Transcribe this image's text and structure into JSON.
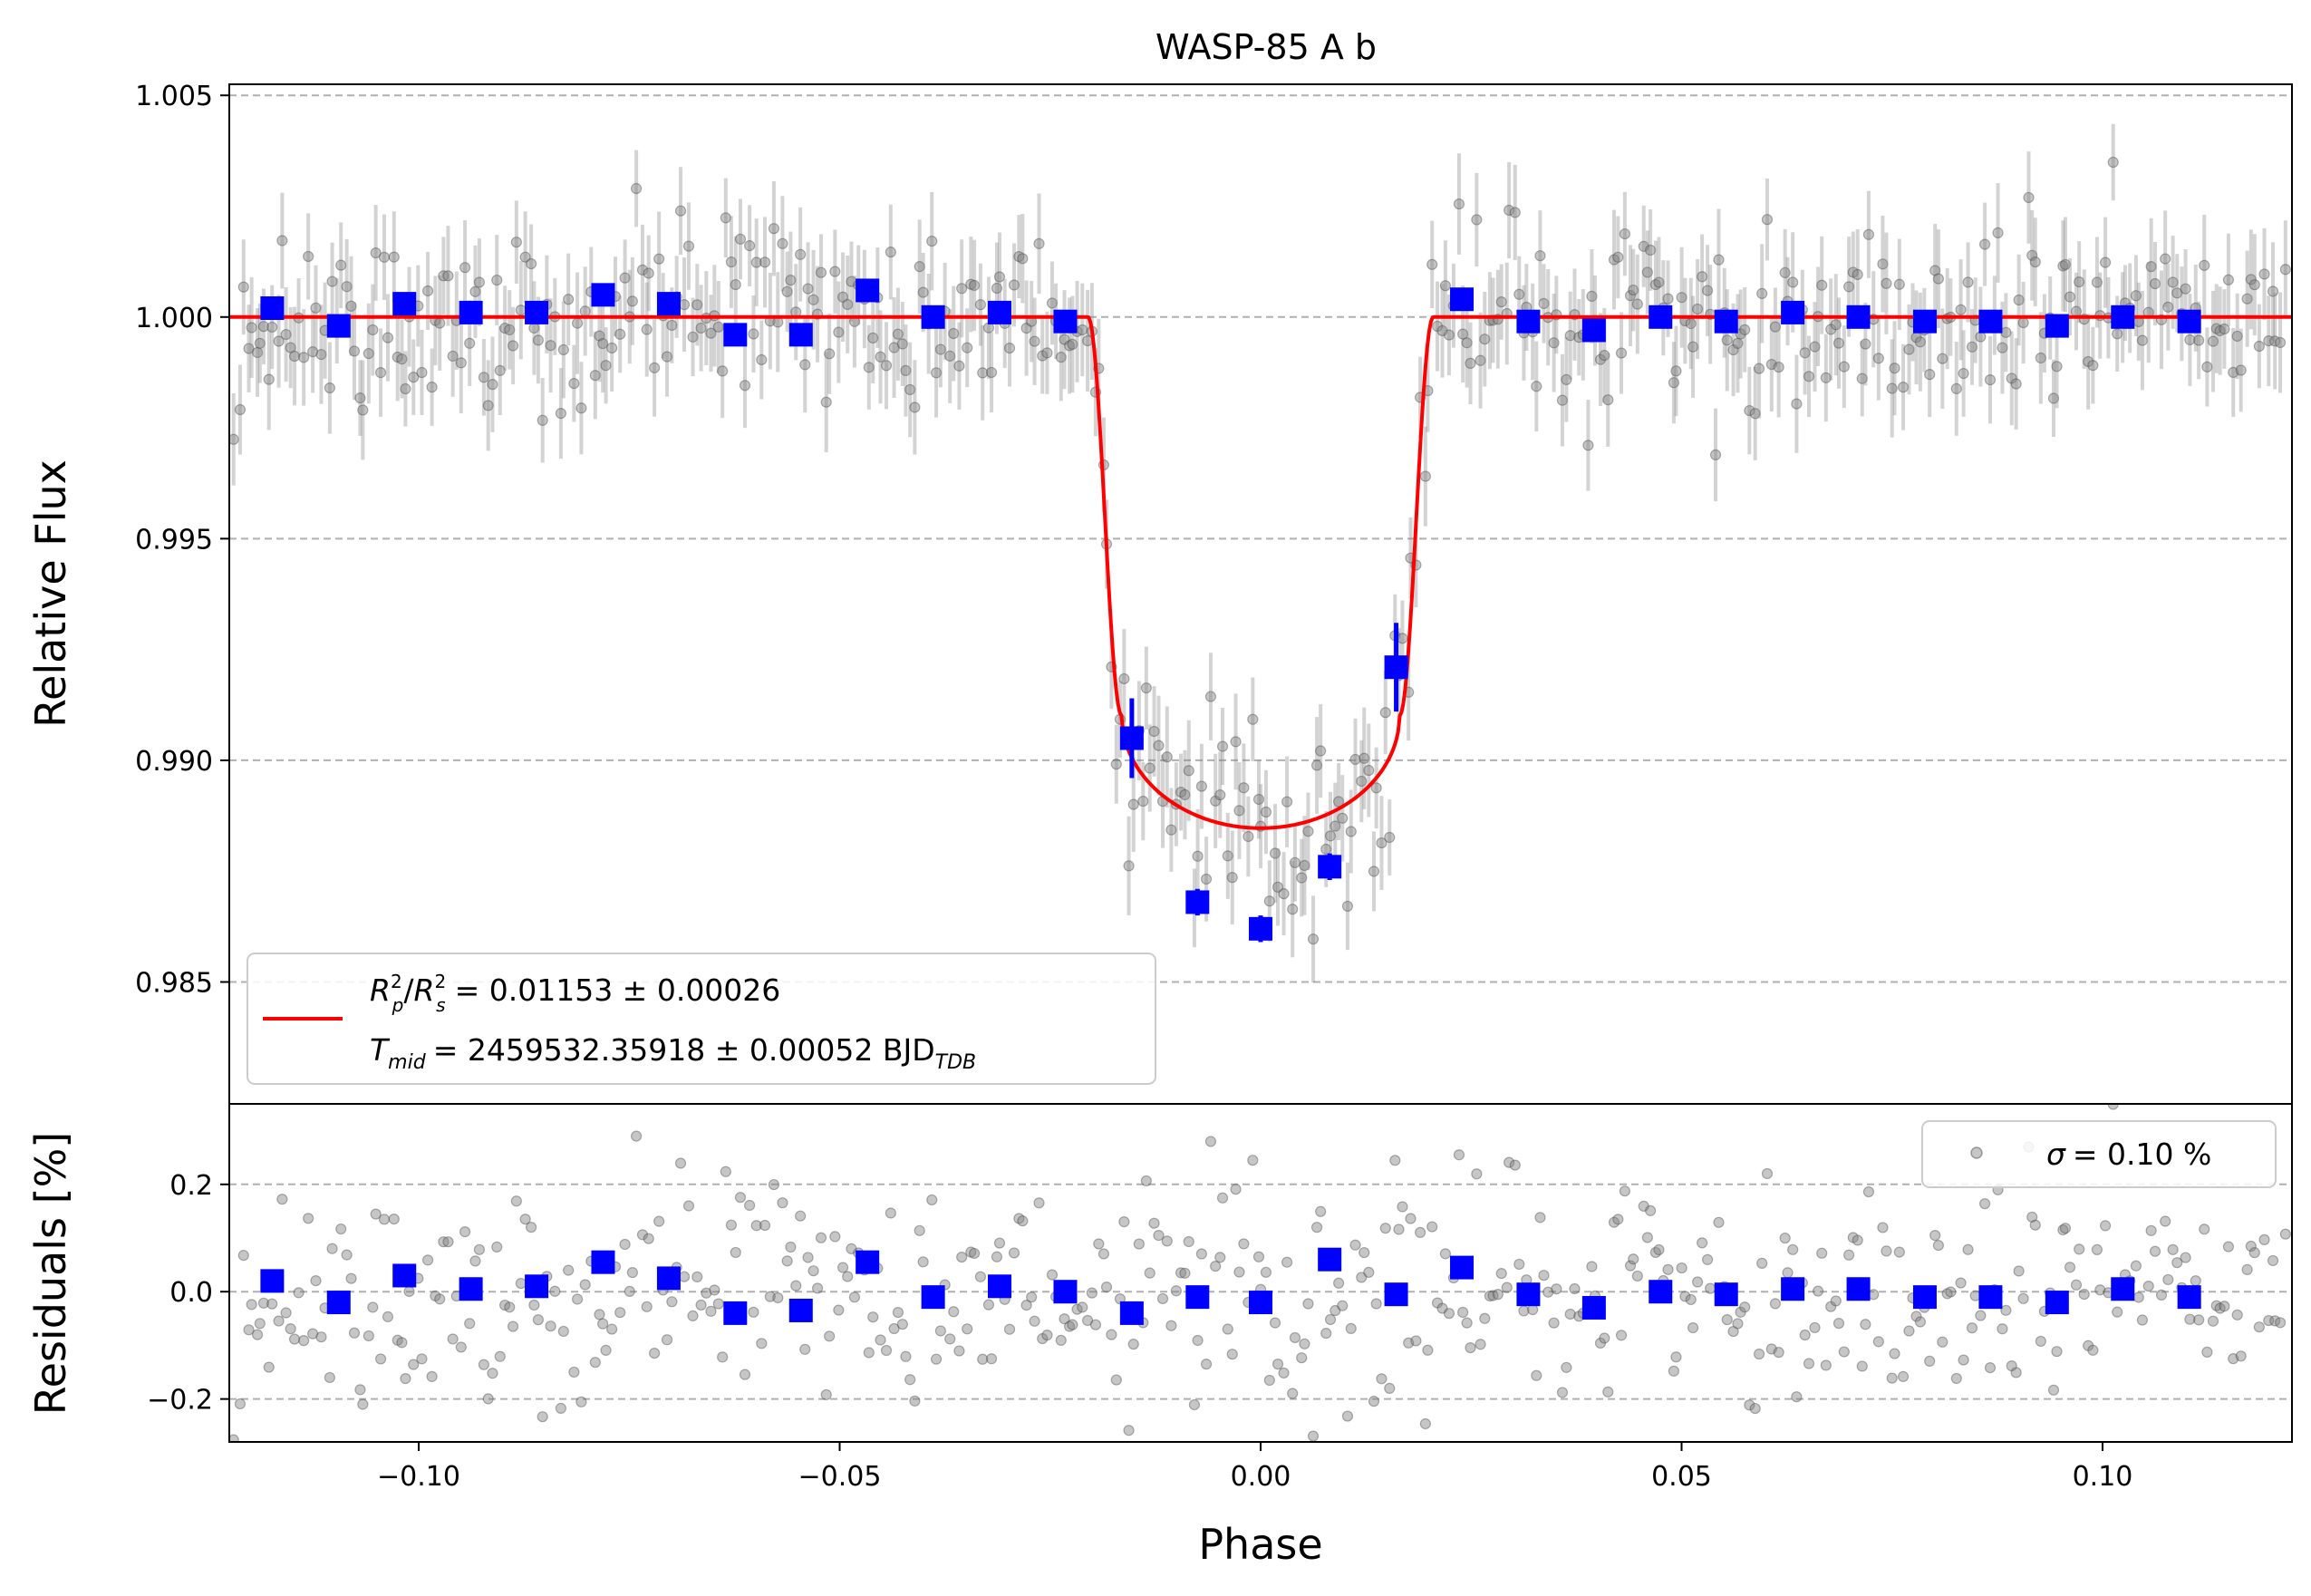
{
  "chart_data": [
    {
      "type": "scatter",
      "panel": "light-curve",
      "title": "WASP-85 A b",
      "xlabel": "Phase",
      "ylabel": "Relative Flux",
      "xlim": [
        -0.1225,
        0.1225
      ],
      "ylim": [
        0.98225,
        1.00525
      ],
      "grid": "horizontal dashed",
      "yticks": [
        0.985,
        0.99,
        0.995,
        1.0,
        1.005
      ],
      "ytick_labels": [
        "0.985",
        "0.990",
        "0.995",
        "1.000",
        "1.005"
      ],
      "model": {
        "name": "transit model",
        "depth": 0.01153,
        "baseline": 1.0,
        "center": 0.0,
        "half_duration_phase": 0.0205,
        "ingress_phase": 0.004,
        "color": "#ff0000"
      },
      "legend": {
        "placement": "lower-left",
        "rp_label": "R",
        "rp_sub": "p",
        "rs_label": "R",
        "rs_sub": "s",
        "superscript": "2",
        "rp_rs_value": "= 0.01153 ± 0.00026",
        "tmid_label": "T",
        "tmid_sub": "mid",
        "tmid_value": "= 2459532.35918 ± 0.00052 BJD",
        "tmid_unit_sub": "TDB"
      },
      "binned_series": {
        "name": "binned data",
        "color": "#0000ff",
        "x": [
          -0.1174,
          -0.1095,
          -0.1017,
          -0.0938,
          -0.086,
          -0.0781,
          -0.0703,
          -0.0624,
          -0.0546,
          -0.0467,
          -0.0389,
          -0.031,
          -0.0232,
          -0.0153,
          -0.0075,
          0.0,
          0.0082,
          0.0161,
          0.0239,
          0.0318,
          0.0396,
          0.0475,
          0.0553,
          0.0632,
          0.071,
          0.0789,
          0.0867,
          0.0946,
          0.1024,
          0.1103
        ],
        "y": [
          1.0002,
          0.9998,
          1.0003,
          1.0001,
          1.0001,
          1.0005,
          1.0003,
          0.9996,
          0.9996,
          1.0006,
          1.0,
          1.0001,
          0.9999,
          0.9905,
          0.9868,
          0.9862,
          0.9876,
          0.9921,
          1.0004,
          0.9999,
          0.9997,
          1.0,
          0.9999,
          1.0001,
          1.0,
          0.9999,
          0.9999,
          0.9998,
          1.0,
          0.9999
        ],
        "yerr": [
          0.0002,
          0.0002,
          0.0002,
          0.0002,
          0.0002,
          0.0002,
          0.0002,
          0.0002,
          0.0002,
          0.0002,
          0.0002,
          0.0002,
          0.0002,
          0.0009,
          0.0003,
          0.0003,
          0.0003,
          0.001,
          0.0002,
          0.0002,
          0.0002,
          0.0002,
          0.0002,
          0.0002,
          0.0002,
          0.0002,
          0.0002,
          0.0002,
          0.0002,
          0.0002
        ]
      },
      "raw_series": {
        "name": "unbinned data",
        "color": "#808080",
        "n_points": 480,
        "x_range": [
          -0.122,
          0.122
        ],
        "scatter_sigma": 0.001,
        "typical_yerr": 0.001
      }
    },
    {
      "type": "scatter",
      "panel": "residuals",
      "xlabel": "Phase",
      "ylabel": "Residuals [%]",
      "xlim": [
        -0.1225,
        0.1225
      ],
      "ylim": [
        -0.28,
        0.35
      ],
      "grid": "horizontal dashed",
      "xticks": [
        -0.1,
        -0.05,
        0.0,
        0.05,
        0.1
      ],
      "xtick_labels": [
        "−0.10",
        "−0.05",
        "0.00",
        "0.05",
        "0.10"
      ],
      "yticks": [
        -0.2,
        0.0,
        0.2
      ],
      "ytick_labels": [
        "−0.2",
        "0.0",
        "0.2"
      ],
      "legend": {
        "placement": "top-right",
        "sigma_symbol": "σ",
        "sigma_value": "= 0.10 %"
      },
      "binned_series": {
        "name": "binned residuals",
        "color": "#0000ff",
        "x": [
          -0.1174,
          -0.1095,
          -0.1017,
          -0.0938,
          -0.086,
          -0.0781,
          -0.0703,
          -0.0624,
          -0.0546,
          -0.0467,
          -0.0389,
          -0.031,
          -0.0232,
          -0.0153,
          -0.0075,
          0.0,
          0.0082,
          0.0161,
          0.0239,
          0.0318,
          0.0396,
          0.0475,
          0.0553,
          0.0632,
          0.071,
          0.0789,
          0.0867,
          0.0946,
          0.1024,
          0.1103
        ],
        "y": [
          0.02,
          -0.02,
          0.03,
          0.005,
          0.01,
          0.055,
          0.025,
          -0.04,
          -0.035,
          0.055,
          -0.01,
          0.01,
          0.0,
          -0.04,
          -0.01,
          -0.02,
          0.06,
          -0.005,
          0.045,
          -0.005,
          -0.03,
          0.0,
          -0.005,
          0.005,
          0.005,
          -0.01,
          -0.01,
          -0.02,
          0.005,
          -0.01
        ]
      },
      "raw_series": {
        "name": "unbinned residuals",
        "color": "#808080",
        "n_points": 480,
        "scatter_sigma": 0.1
      }
    }
  ]
}
